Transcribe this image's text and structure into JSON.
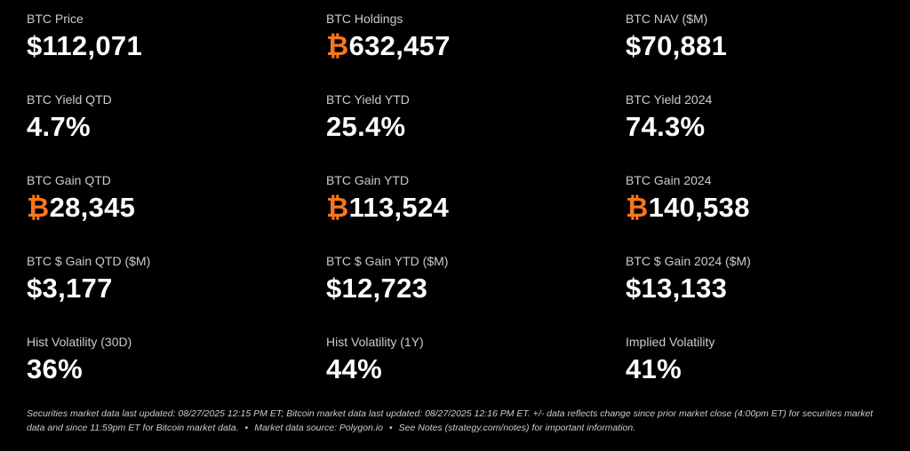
{
  "accent": "#f7771d",
  "stats": [
    {
      "label": "BTC Price",
      "prefix": "$",
      "value": "112,071"
    },
    {
      "label": "BTC Holdings",
      "prefix": "₿",
      "value": "632,457"
    },
    {
      "label": "BTC NAV ($M)",
      "prefix": "$",
      "value": "70,881"
    },
    {
      "label": "BTC Yield QTD",
      "prefix": "",
      "value": "4.7%"
    },
    {
      "label": "BTC Yield YTD",
      "prefix": "",
      "value": "25.4%"
    },
    {
      "label": "BTC Yield 2024",
      "prefix": "",
      "value": "74.3%"
    },
    {
      "label": "BTC Gain QTD",
      "prefix": "₿",
      "value": "28,345"
    },
    {
      "label": "BTC Gain YTD",
      "prefix": "₿",
      "value": "113,524"
    },
    {
      "label": "BTC Gain 2024",
      "prefix": "₿",
      "value": "140,538"
    },
    {
      "label": "BTC $ Gain QTD ($M)",
      "prefix": "$",
      "value": "3,177"
    },
    {
      "label": "BTC $ Gain YTD ($M)",
      "prefix": "$",
      "value": "12,723"
    },
    {
      "label": "BTC $ Gain 2024 ($M)",
      "prefix": "$",
      "value": "13,133"
    },
    {
      "label": "Hist Volatility (30D)",
      "prefix": "",
      "value": "36%"
    },
    {
      "label": "Hist Volatility (1Y)",
      "prefix": "",
      "value": "44%"
    },
    {
      "label": "Implied Volatility",
      "prefix": "",
      "value": "41%"
    }
  ],
  "footer": {
    "line1": "Securities market data last updated: 08/27/2025 12:15 PM ET; Bitcoin market data last updated: 08/27/2025 12:16 PM ET. +/- data reflects change since prior market close (4:00pm ET) for securities market data and since 11:59pm ET for Bitcoin market data.",
    "separator": "•",
    "source": "Market data source: Polygon.io",
    "notes": "See Notes (strategy.com/notes) for important information."
  }
}
